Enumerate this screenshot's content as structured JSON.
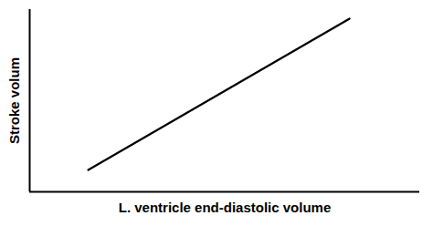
{
  "chart_data": {
    "type": "line",
    "x": [
      0.15,
      0.82
    ],
    "values": [
      0.12,
      0.95
    ],
    "color": "#000000",
    "xlabel": "L. ventricle end-diastolic volume",
    "ylabel": "Stroke volum",
    "xlim": [
      0,
      1
    ],
    "ylim": [
      0,
      1
    ],
    "tick_labels": false
  }
}
